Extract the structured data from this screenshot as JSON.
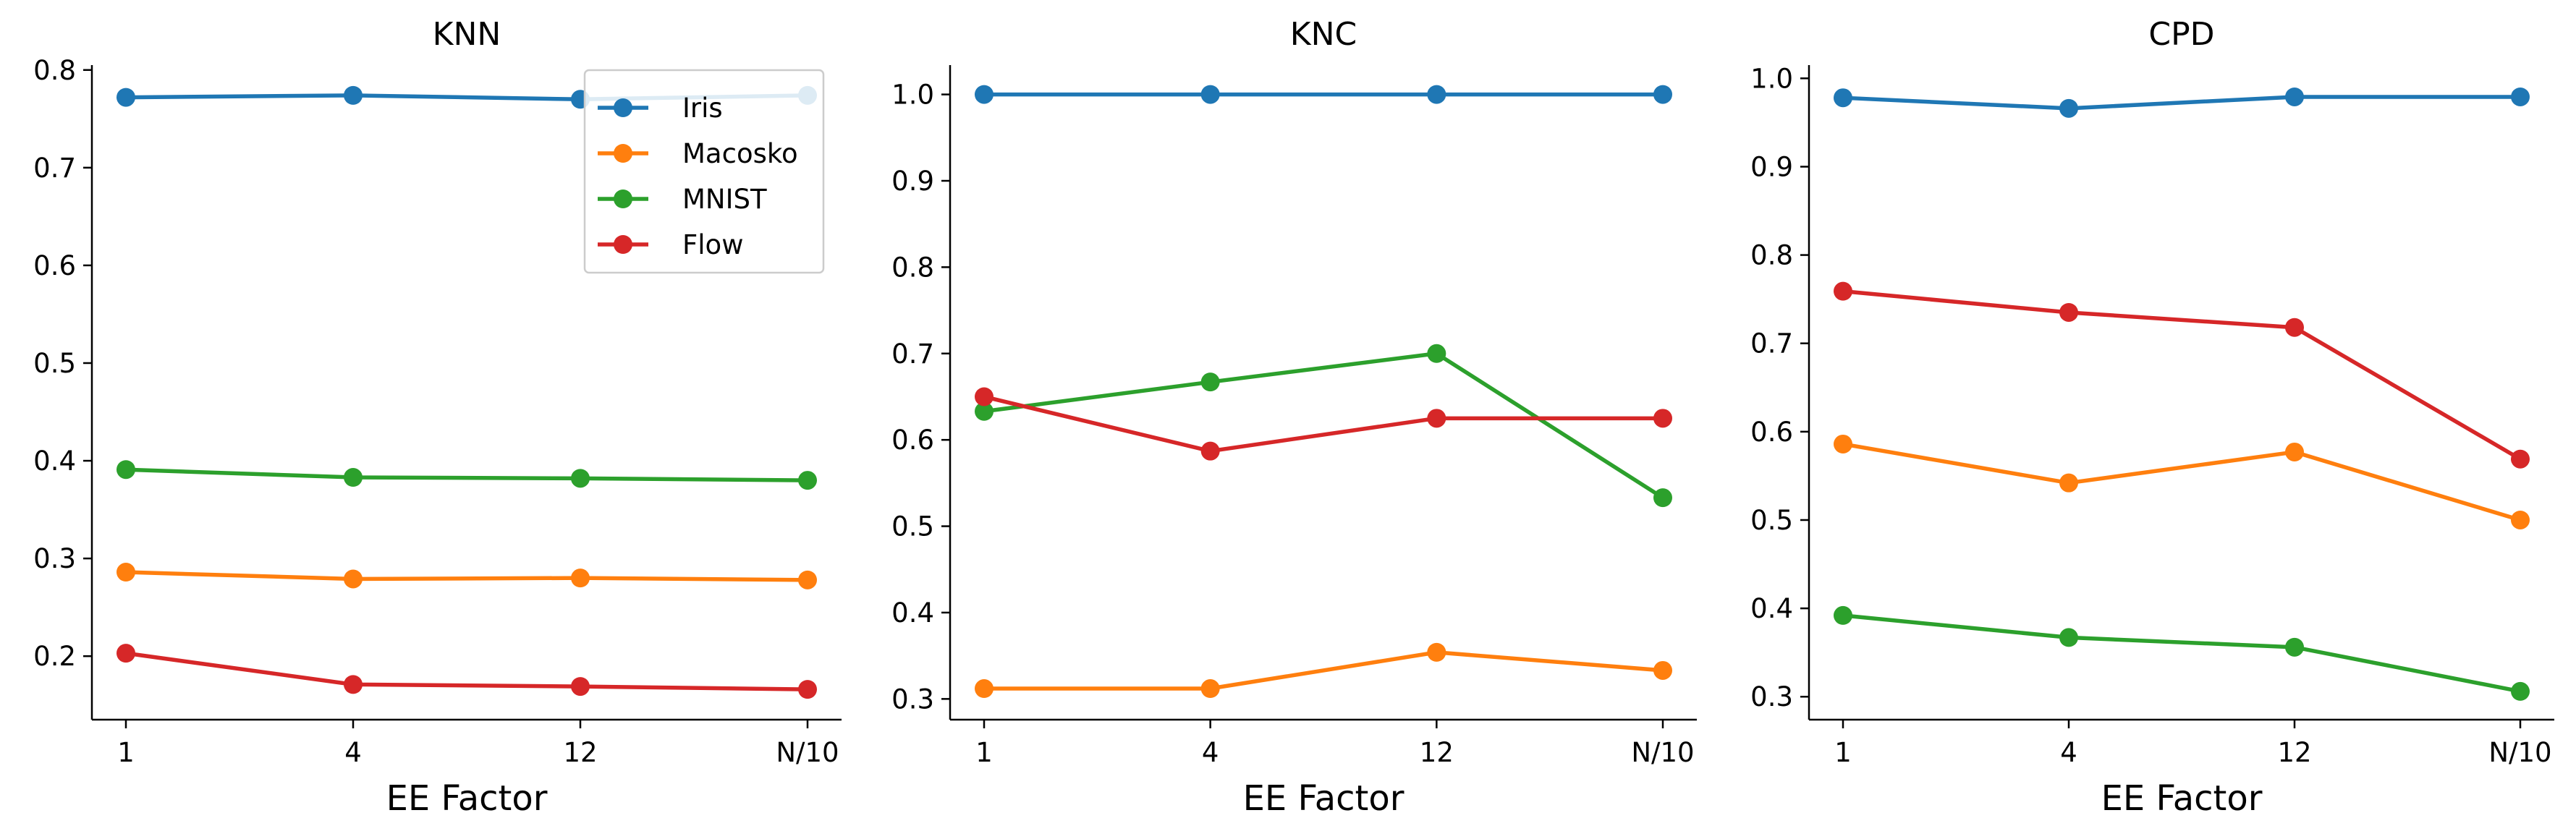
{
  "chart_data": [
    {
      "type": "line",
      "title": "KNN",
      "xlabel": "EE Factor",
      "ylabel": "",
      "categories": [
        "1",
        "4",
        "12",
        "N/10"
      ],
      "ylim": [
        0.135,
        0.805
      ],
      "yticks": [
        0.2,
        0.3,
        0.4,
        0.5,
        0.6,
        0.7,
        0.8
      ],
      "ytick_labels": [
        "0.2",
        "0.3",
        "0.4",
        "0.5",
        "0.6",
        "0.7",
        "0.8"
      ],
      "legend": "top-right",
      "grid": false,
      "series": [
        {
          "name": "Iris",
          "color": "#1f77b4",
          "values": [
            0.772,
            0.774,
            0.77,
            0.774
          ]
        },
        {
          "name": "Macosko",
          "color": "#ff7f0e",
          "values": [
            0.286,
            0.279,
            0.28,
            0.278
          ]
        },
        {
          "name": "MNIST",
          "color": "#2ca02c",
          "values": [
            0.391,
            0.383,
            0.382,
            0.38
          ]
        },
        {
          "name": "Flow",
          "color": "#d62728",
          "values": [
            0.203,
            0.171,
            0.169,
            0.166
          ]
        }
      ]
    },
    {
      "type": "line",
      "title": "KNC",
      "xlabel": "EE Factor",
      "ylabel": "",
      "categories": [
        "1",
        "4",
        "12",
        "N/10"
      ],
      "ylim": [
        0.276,
        1.034
      ],
      "yticks": [
        0.3,
        0.4,
        0.5,
        0.6,
        0.7,
        0.8,
        0.9,
        1.0
      ],
      "ytick_labels": [
        "0.3",
        "0.4",
        "0.5",
        "0.6",
        "0.7",
        "0.8",
        "0.9",
        "1.0"
      ],
      "grid": false,
      "series": [
        {
          "name": "Iris",
          "color": "#1f77b4",
          "values": [
            1.0,
            1.0,
            1.0,
            1.0
          ]
        },
        {
          "name": "Macosko",
          "color": "#ff7f0e",
          "values": [
            0.312,
            0.312,
            0.354,
            0.333
          ]
        },
        {
          "name": "MNIST",
          "color": "#2ca02c",
          "values": [
            0.633,
            0.667,
            0.7,
            0.533
          ]
        },
        {
          "name": "Flow",
          "color": "#d62728",
          "values": [
            0.65,
            0.587,
            0.625,
            0.625
          ]
        }
      ]
    },
    {
      "type": "line",
      "title": "CPD",
      "xlabel": "EE Factor",
      "ylabel": "",
      "categories": [
        "1",
        "4",
        "12",
        "N/10"
      ],
      "ylim": [
        0.274,
        1.015
      ],
      "yticks": [
        0.3,
        0.4,
        0.5,
        0.6,
        0.7,
        0.8,
        0.9,
        1.0
      ],
      "ytick_labels": [
        "0.3",
        "0.4",
        "0.5",
        "0.6",
        "0.7",
        "0.8",
        "0.9",
        "1.0"
      ],
      "grid": false,
      "series": [
        {
          "name": "Iris",
          "color": "#1f77b4",
          "values": [
            0.978,
            0.966,
            0.979,
            0.979
          ]
        },
        {
          "name": "Macosko",
          "color": "#ff7f0e",
          "values": [
            0.586,
            0.542,
            0.577,
            0.5
          ]
        },
        {
          "name": "MNIST",
          "color": "#2ca02c",
          "values": [
            0.392,
            0.367,
            0.356,
            0.306
          ]
        },
        {
          "name": "Flow",
          "color": "#d62728",
          "values": [
            0.759,
            0.735,
            0.718,
            0.569
          ]
        }
      ]
    }
  ]
}
